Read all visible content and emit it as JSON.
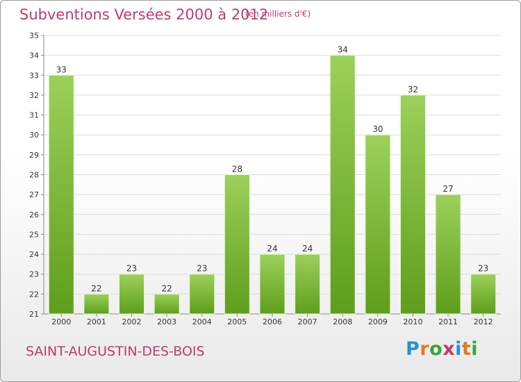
{
  "title": "Subventions Versées 2000 à 2012",
  "subtitle": "(en milliers d'€)",
  "commune": "SAINT-AUGUSTIN-DES-BOIS",
  "logo": {
    "text": "Proxiti",
    "letters": [
      {
        "ch": "P",
        "color": "#2b8fd6"
      },
      {
        "ch": "r",
        "color": "#e07b1a"
      },
      {
        "ch": "o",
        "color": "#3aa33a"
      },
      {
        "ch": "x",
        "color": "#c03a6e"
      },
      {
        "ch": "i",
        "color": "#2b8fd6"
      },
      {
        "ch": "t",
        "color": "#e07b1a"
      },
      {
        "ch": "i",
        "color": "#3aa33a"
      }
    ]
  },
  "colors": {
    "title": "#c03a6e",
    "bar_top": "#9cd05a",
    "bar_bottom": "#5e9e1c",
    "grid": "#dcdcdc"
  },
  "chart_data": {
    "type": "bar",
    "categories": [
      "2000",
      "2001",
      "2002",
      "2003",
      "2004",
      "2005",
      "2006",
      "2007",
      "2008",
      "2009",
      "2010",
      "2011",
      "2012"
    ],
    "values": [
      33,
      22,
      23,
      22,
      23,
      28,
      24,
      24,
      34,
      30,
      32,
      27,
      23
    ],
    "ylim": [
      21,
      35
    ],
    "yticks": [
      21,
      22,
      23,
      24,
      25,
      26,
      27,
      28,
      29,
      30,
      31,
      32,
      33,
      34,
      35
    ],
    "grid": true,
    "data_labels": true
  }
}
